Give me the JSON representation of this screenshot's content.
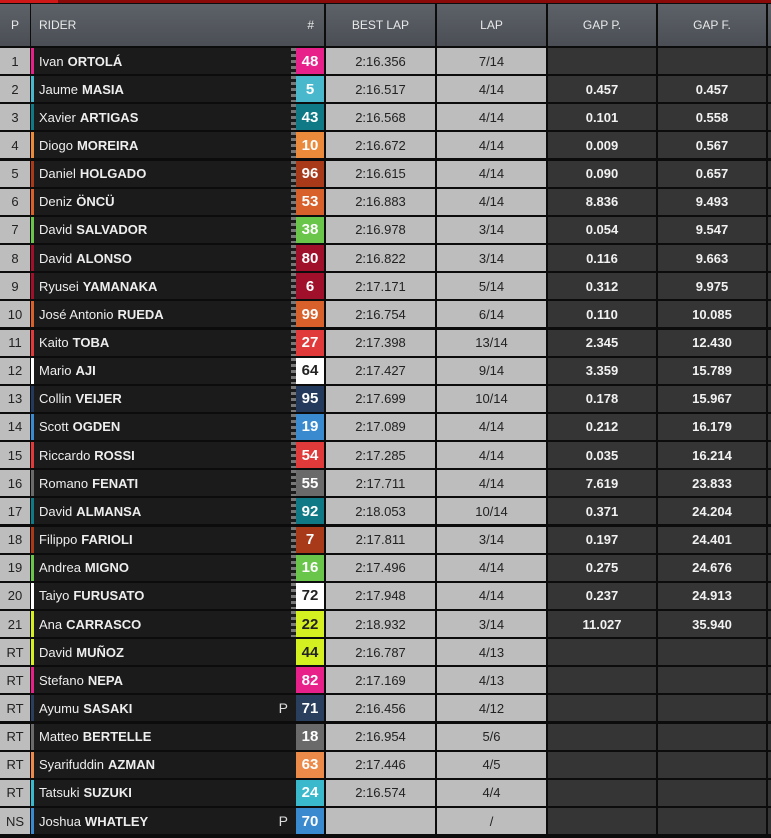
{
  "header": {
    "p": "P",
    "rider": "RIDER",
    "num": "#",
    "best_lap": "BEST LAP",
    "lap": "LAP",
    "gap_p": "GAP P.",
    "gap_f": "GAP F."
  },
  "rows": [
    {
      "pos": "1",
      "first": "Ivan",
      "last": "ORTOLÁ",
      "num": "48",
      "color": "#e8208a",
      "text": "#fff",
      "best": "2:16.356",
      "lap": "7/14",
      "gap_p": "",
      "gap_f": "",
      "finished": true,
      "p": ""
    },
    {
      "pos": "2",
      "first": "Jaume",
      "last": "MASIA",
      "num": "5",
      "color": "#4ab8cc",
      "text": "#fff",
      "best": "2:16.517",
      "lap": "4/14",
      "gap_p": "0.457",
      "gap_f": "0.457",
      "finished": true,
      "p": ""
    },
    {
      "pos": "3",
      "first": "Xavier",
      "last": "ARTIGAS",
      "num": "43",
      "color": "#0f7a86",
      "text": "#fff",
      "best": "2:16.568",
      "lap": "4/14",
      "gap_p": "0.101",
      "gap_f": "0.558",
      "finished": true,
      "p": ""
    },
    {
      "pos": "4",
      "first": "Diogo",
      "last": "MOREIRA",
      "num": "10",
      "color": "#ec8a3c",
      "text": "#fff",
      "best": "2:16.672",
      "lap": "4/14",
      "gap_p": "0.009",
      "gap_f": "0.567",
      "finished": true,
      "p": ""
    },
    {
      "pos": "5",
      "first": "Daniel",
      "last": "HOLGADO",
      "num": "96",
      "color": "#a83a1a",
      "text": "#fff",
      "best": "2:16.615",
      "lap": "4/14",
      "gap_p": "0.090",
      "gap_f": "0.657",
      "finished": true,
      "p": ""
    },
    {
      "pos": "6",
      "first": "Deniz",
      "last": "ÖNCÜ",
      "num": "53",
      "color": "#d8602a",
      "text": "#fff",
      "best": "2:16.883",
      "lap": "4/14",
      "gap_p": "8.836",
      "gap_f": "9.493",
      "finished": true,
      "p": ""
    },
    {
      "pos": "7",
      "first": "David",
      "last": "SALVADOR",
      "num": "38",
      "color": "#6ac64a",
      "text": "#fff",
      "best": "2:16.978",
      "lap": "3/14",
      "gap_p": "0.054",
      "gap_f": "9.547",
      "finished": true,
      "p": ""
    },
    {
      "pos": "8",
      "first": "David",
      "last": "ALONSO",
      "num": "80",
      "color": "#a0102a",
      "text": "#fff",
      "best": "2:16.822",
      "lap": "3/14",
      "gap_p": "0.116",
      "gap_f": "9.663",
      "finished": true,
      "p": ""
    },
    {
      "pos": "9",
      "first": "Ryusei",
      "last": "YAMANAKA",
      "num": "6",
      "color": "#a0102a",
      "text": "#fff",
      "best": "2:17.171",
      "lap": "5/14",
      "gap_p": "0.312",
      "gap_f": "9.975",
      "finished": true,
      "p": ""
    },
    {
      "pos": "10",
      "first": "José Antonio",
      "last": "RUEDA",
      "num": "99",
      "color": "#d8602a",
      "text": "#fff",
      "best": "2:16.754",
      "lap": "6/14",
      "gap_p": "0.110",
      "gap_f": "10.085",
      "finished": true,
      "p": ""
    },
    {
      "pos": "11",
      "first": "Kaito",
      "last": "TOBA",
      "num": "27",
      "color": "#e03a3a",
      "text": "#fff",
      "best": "2:17.398",
      "lap": "13/14",
      "gap_p": "2.345",
      "gap_f": "12.430",
      "finished": true,
      "p": ""
    },
    {
      "pos": "12",
      "first": "Mario",
      "last": "AJI",
      "num": "64",
      "color": "#ffffff",
      "text": "#222",
      "best": "2:17.427",
      "lap": "9/14",
      "gap_p": "3.359",
      "gap_f": "15.789",
      "finished": true,
      "p": ""
    },
    {
      "pos": "13",
      "first": "Collin",
      "last": "VEIJER",
      "num": "95",
      "color": "#243a5c",
      "text": "#fff",
      "best": "2:17.699",
      "lap": "10/14",
      "gap_p": "0.178",
      "gap_f": "15.967",
      "finished": true,
      "p": ""
    },
    {
      "pos": "14",
      "first": "Scott",
      "last": "OGDEN",
      "num": "19",
      "color": "#3a8ad0",
      "text": "#fff",
      "best": "2:17.089",
      "lap": "4/14",
      "gap_p": "0.212",
      "gap_f": "16.179",
      "finished": true,
      "p": ""
    },
    {
      "pos": "15",
      "first": "Riccardo",
      "last": "ROSSI",
      "num": "54",
      "color": "#e03a3a",
      "text": "#fff",
      "best": "2:17.285",
      "lap": "4/14",
      "gap_p": "0.035",
      "gap_f": "16.214",
      "finished": true,
      "p": ""
    },
    {
      "pos": "16",
      "first": "Romano",
      "last": "FENATI",
      "num": "55",
      "color": "#6a6a6a",
      "text": "#fff",
      "best": "2:17.711",
      "lap": "4/14",
      "gap_p": "7.619",
      "gap_f": "23.833",
      "finished": true,
      "p": ""
    },
    {
      "pos": "17",
      "first": "David",
      "last": "ALMANSA",
      "num": "92",
      "color": "#0f7a86",
      "text": "#fff",
      "best": "2:18.053",
      "lap": "10/14",
      "gap_p": "0.371",
      "gap_f": "24.204",
      "finished": true,
      "p": ""
    },
    {
      "pos": "18",
      "first": "Filippo",
      "last": "FARIOLI",
      "num": "7",
      "color": "#a83a1a",
      "text": "#fff",
      "best": "2:17.811",
      "lap": "3/14",
      "gap_p": "0.197",
      "gap_f": "24.401",
      "finished": true,
      "p": ""
    },
    {
      "pos": "19",
      "first": "Andrea",
      "last": "MIGNO",
      "num": "16",
      "color": "#6ac64a",
      "text": "#fff",
      "best": "2:17.496",
      "lap": "4/14",
      "gap_p": "0.275",
      "gap_f": "24.676",
      "finished": true,
      "p": ""
    },
    {
      "pos": "20",
      "first": "Taiyo",
      "last": "FURUSATO",
      "num": "72",
      "color": "#ffffff",
      "text": "#222",
      "best": "2:17.948",
      "lap": "4/14",
      "gap_p": "0.237",
      "gap_f": "24.913",
      "finished": true,
      "p": ""
    },
    {
      "pos": "21",
      "first": "Ana",
      "last": "CARRASCO",
      "num": "22",
      "color": "#d4f020",
      "text": "#222",
      "best": "2:18.932",
      "lap": "3/14",
      "gap_p": "11.027",
      "gap_f": "35.940",
      "finished": true,
      "p": ""
    },
    {
      "pos": "RT",
      "first": "David",
      "last": "MUÑOZ",
      "num": "44",
      "color": "#d4f020",
      "text": "#222",
      "best": "2:16.787",
      "lap": "4/13",
      "gap_p": "",
      "gap_f": "",
      "finished": false,
      "p": ""
    },
    {
      "pos": "RT",
      "first": "Stefano",
      "last": "NEPA",
      "num": "82",
      "color": "#e8208a",
      "text": "#fff",
      "best": "2:17.169",
      "lap": "4/13",
      "gap_p": "",
      "gap_f": "",
      "finished": false,
      "p": ""
    },
    {
      "pos": "RT",
      "first": "Ayumu",
      "last": "SASAKI",
      "num": "71",
      "color": "#2a3f5e",
      "text": "#fff",
      "best": "2:16.456",
      "lap": "4/12",
      "gap_p": "",
      "gap_f": "",
      "finished": false,
      "p": "P"
    },
    {
      "pos": "RT",
      "first": "Matteo",
      "last": "BERTELLE",
      "num": "18",
      "color": "#6a6a6a",
      "text": "#fff",
      "best": "2:16.954",
      "lap": "5/6",
      "gap_p": "",
      "gap_f": "",
      "finished": false,
      "p": ""
    },
    {
      "pos": "RT",
      "first": "Syarifuddin",
      "last": "AZMAN",
      "num": "63",
      "color": "#ec8a4a",
      "text": "#fff",
      "best": "2:17.446",
      "lap": "4/5",
      "gap_p": "",
      "gap_f": "",
      "finished": false,
      "p": ""
    },
    {
      "pos": "RT",
      "first": "Tatsuki",
      "last": "SUZUKI",
      "num": "24",
      "color": "#3ab8cc",
      "text": "#fff",
      "best": "2:16.574",
      "lap": "4/4",
      "gap_p": "",
      "gap_f": "",
      "finished": false,
      "p": ""
    },
    {
      "pos": "NS",
      "first": "Joshua",
      "last": "WHATLEY",
      "num": "70",
      "color": "#3a8ad0",
      "text": "#fff",
      "best": "",
      "lap": "/",
      "gap_p": "",
      "gap_f": "",
      "finished": false,
      "p": "P"
    }
  ]
}
